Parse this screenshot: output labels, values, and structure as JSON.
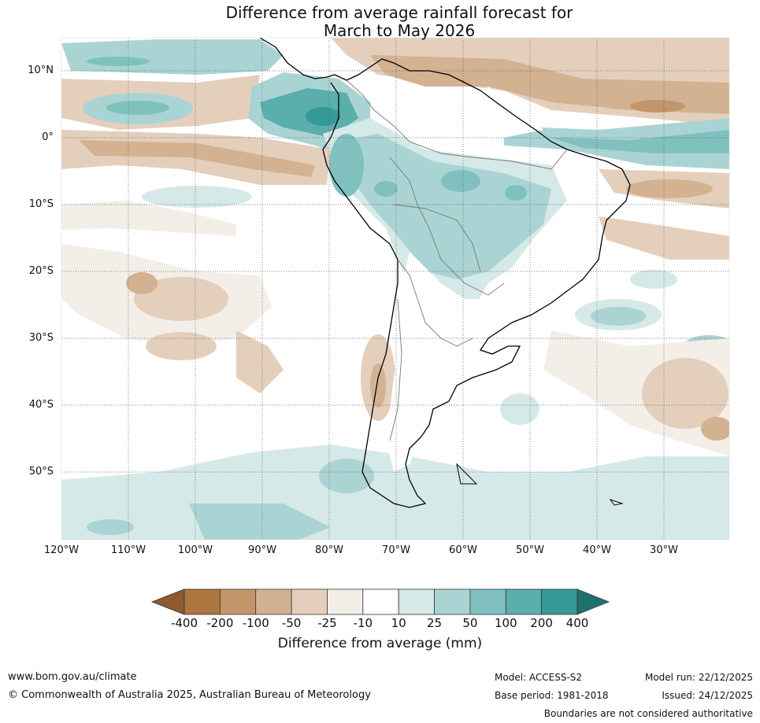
{
  "title_line1": "Difference from average rainfall forecast for",
  "title_line2": "March to May 2026",
  "lat_labels": [
    "10°N",
    "0°",
    "10°S",
    "20°S",
    "30°S",
    "40°S",
    "50°S"
  ],
  "lon_labels": [
    "120°W",
    "110°W",
    "100°W",
    "90°W",
    "80°W",
    "70°W",
    "60°W",
    "50°W",
    "40°W",
    "30°W"
  ],
  "colorbar": {
    "labels": [
      "-400",
      "-200",
      "-100",
      "-50",
      "-25",
      "-10",
      "10",
      "25",
      "50",
      "100",
      "200",
      "400"
    ],
    "colors": [
      "#8e5a2e",
      "#ad7640",
      "#c2966a",
      "#d3b291",
      "#e4cfbc",
      "#f3eee8",
      "#ffffff",
      "#d5e9e8",
      "#aad4d3",
      "#80c1c0",
      "#5aaeac",
      "#349b98",
      "#1f7270"
    ],
    "title": "Difference from average (mm)"
  },
  "footer": {
    "url": "www.bom.gov.au/climate",
    "copyright": "© Commonwealth of Australia 2025, Australian Bureau of Meteorology",
    "model": "Model: ACCESS-S2",
    "base_period": "Base period: 1981-2018",
    "model_run": "Model run: 22/12/2025",
    "issued": "Issued: 24/12/2025",
    "disclaimer": "Boundaries are not considered authoritative"
  }
}
